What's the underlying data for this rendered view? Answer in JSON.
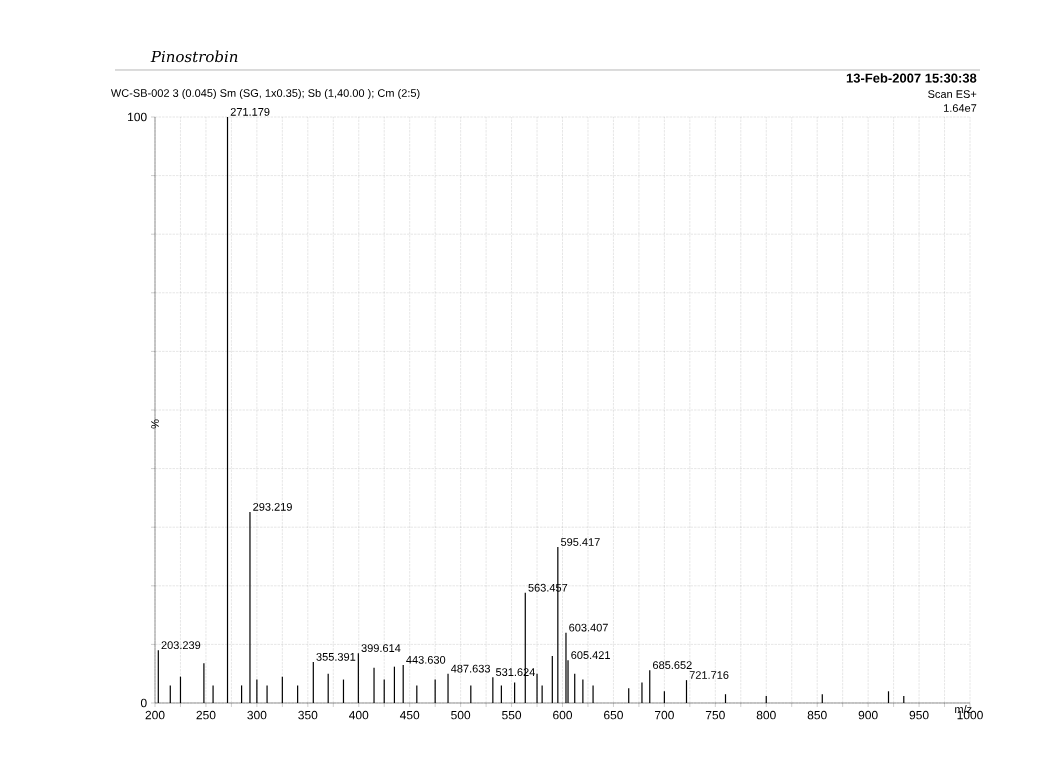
{
  "chart_data": {
    "type": "bar",
    "title": "Pinostrobin",
    "subtitle": "WC-SB-002  3 (0.045) Sm (SG, 1x0.35); Sb (1,40.00 ); Cm (2:5)",
    "xlabel": "m/z",
    "ylabel": "%",
    "x": [
      203.239,
      215,
      225,
      248,
      257,
      271.179,
      285,
      293.219,
      300,
      310,
      325,
      340,
      355.391,
      370,
      385,
      399.614,
      415,
      425,
      435,
      443.63,
      457,
      475,
      487.633,
      510,
      531.624,
      540,
      553,
      563.457,
      575,
      580,
      590,
      595.417,
      603.407,
      605.421,
      612,
      620,
      630,
      665,
      678,
      685.652,
      700,
      721.716,
      760,
      800,
      855,
      920,
      935
    ],
    "series": [
      {
        "color": "#000000",
        "values": [
          9,
          3,
          4.5,
          6.8,
          3,
          100,
          3,
          32.6,
          4,
          3,
          4.5,
          3,
          7,
          5,
          4,
          8.5,
          6,
          4,
          6.2,
          6.5,
          3,
          4,
          5,
          3,
          4.4,
          3,
          3.5,
          18.8,
          5,
          3,
          8,
          26.6,
          12,
          7.3,
          5,
          4,
          3,
          2.5,
          3.5,
          5.6,
          2,
          3.9,
          1.5,
          1.2,
          1.5,
          2,
          1.2
        ]
      }
    ],
    "xlim": [
      200,
      1000
    ],
    "xticks": [
      200,
      {
        "value": 225,
        "label": null
      },
      250,
      {
        "value": 275,
        "label": null
      },
      300,
      {
        "value": 325,
        "label": null
      },
      350,
      {
        "value": 375,
        "label": null
      },
      400,
      {
        "value": 425,
        "label": null
      },
      450,
      {
        "value": 475,
        "label": null
      },
      500,
      {
        "value": 525,
        "label": null
      },
      550,
      {
        "value": 575,
        "label": null
      },
      600,
      {
        "value": 625,
        "label": null
      },
      650,
      {
        "value": 675,
        "label": null
      },
      700,
      {
        "value": 725,
        "label": null
      },
      750,
      {
        "value": 775,
        "label": null
      },
      800,
      {
        "value": 825,
        "label": null
      },
      850,
      {
        "value": 875,
        "label": null
      },
      900,
      {
        "value": 925,
        "label": null
      },
      950,
      {
        "value": 975,
        "label": null
      },
      1000
    ],
    "ylim": [
      0,
      100
    ],
    "yticks": [
      0,
      {
        "value": 10,
        "label": null
      },
      {
        "value": 20,
        "label": null
      },
      {
        "value": 30,
        "label": null
      },
      {
        "value": 40,
        "label": null
      },
      {
        "value": 50,
        "label": null
      },
      {
        "value": 60,
        "label": null
      },
      {
        "value": 70,
        "label": null
      },
      {
        "value": 80,
        "label": null
      },
      {
        "value": 90,
        "label": null
      },
      100
    ],
    "grid": true,
    "annotations": [
      "13-Feb-2007  15:30:38",
      "Scan ES+",
      "1.64e7",
      {
        "text": "203.239",
        "x": 203.239,
        "y": 9
      },
      {
        "text": "271.179",
        "x": 271.179,
        "y": 100
      },
      {
        "text": "293.219",
        "x": 293.219,
        "y": 32.6
      },
      {
        "text": "355.391",
        "x": 355.391,
        "y": 7
      },
      {
        "text": "399.614",
        "x": 399.614,
        "y": 8.5
      },
      {
        "text": "443.630",
        "x": 443.63,
        "y": 6.5
      },
      {
        "text": "487.633",
        "x": 487.633,
        "y": 5
      },
      {
        "text": "531.624",
        "x": 531.624,
        "y": 4.4
      },
      {
        "text": "563.457",
        "x": 563.457,
        "y": 18.8
      },
      {
        "text": "595.417",
        "x": 595.417,
        "y": 26.6
      },
      {
        "text": "603.407",
        "x": 603.407,
        "y": 12
      },
      {
        "text": "605.421",
        "x": 605.421,
        "y": 7.3
      },
      {
        "text": "685.652",
        "x": 685.652,
        "y": 5.6
      },
      {
        "text": "721.716",
        "x": 721.716,
        "y": 3.9
      }
    ]
  }
}
